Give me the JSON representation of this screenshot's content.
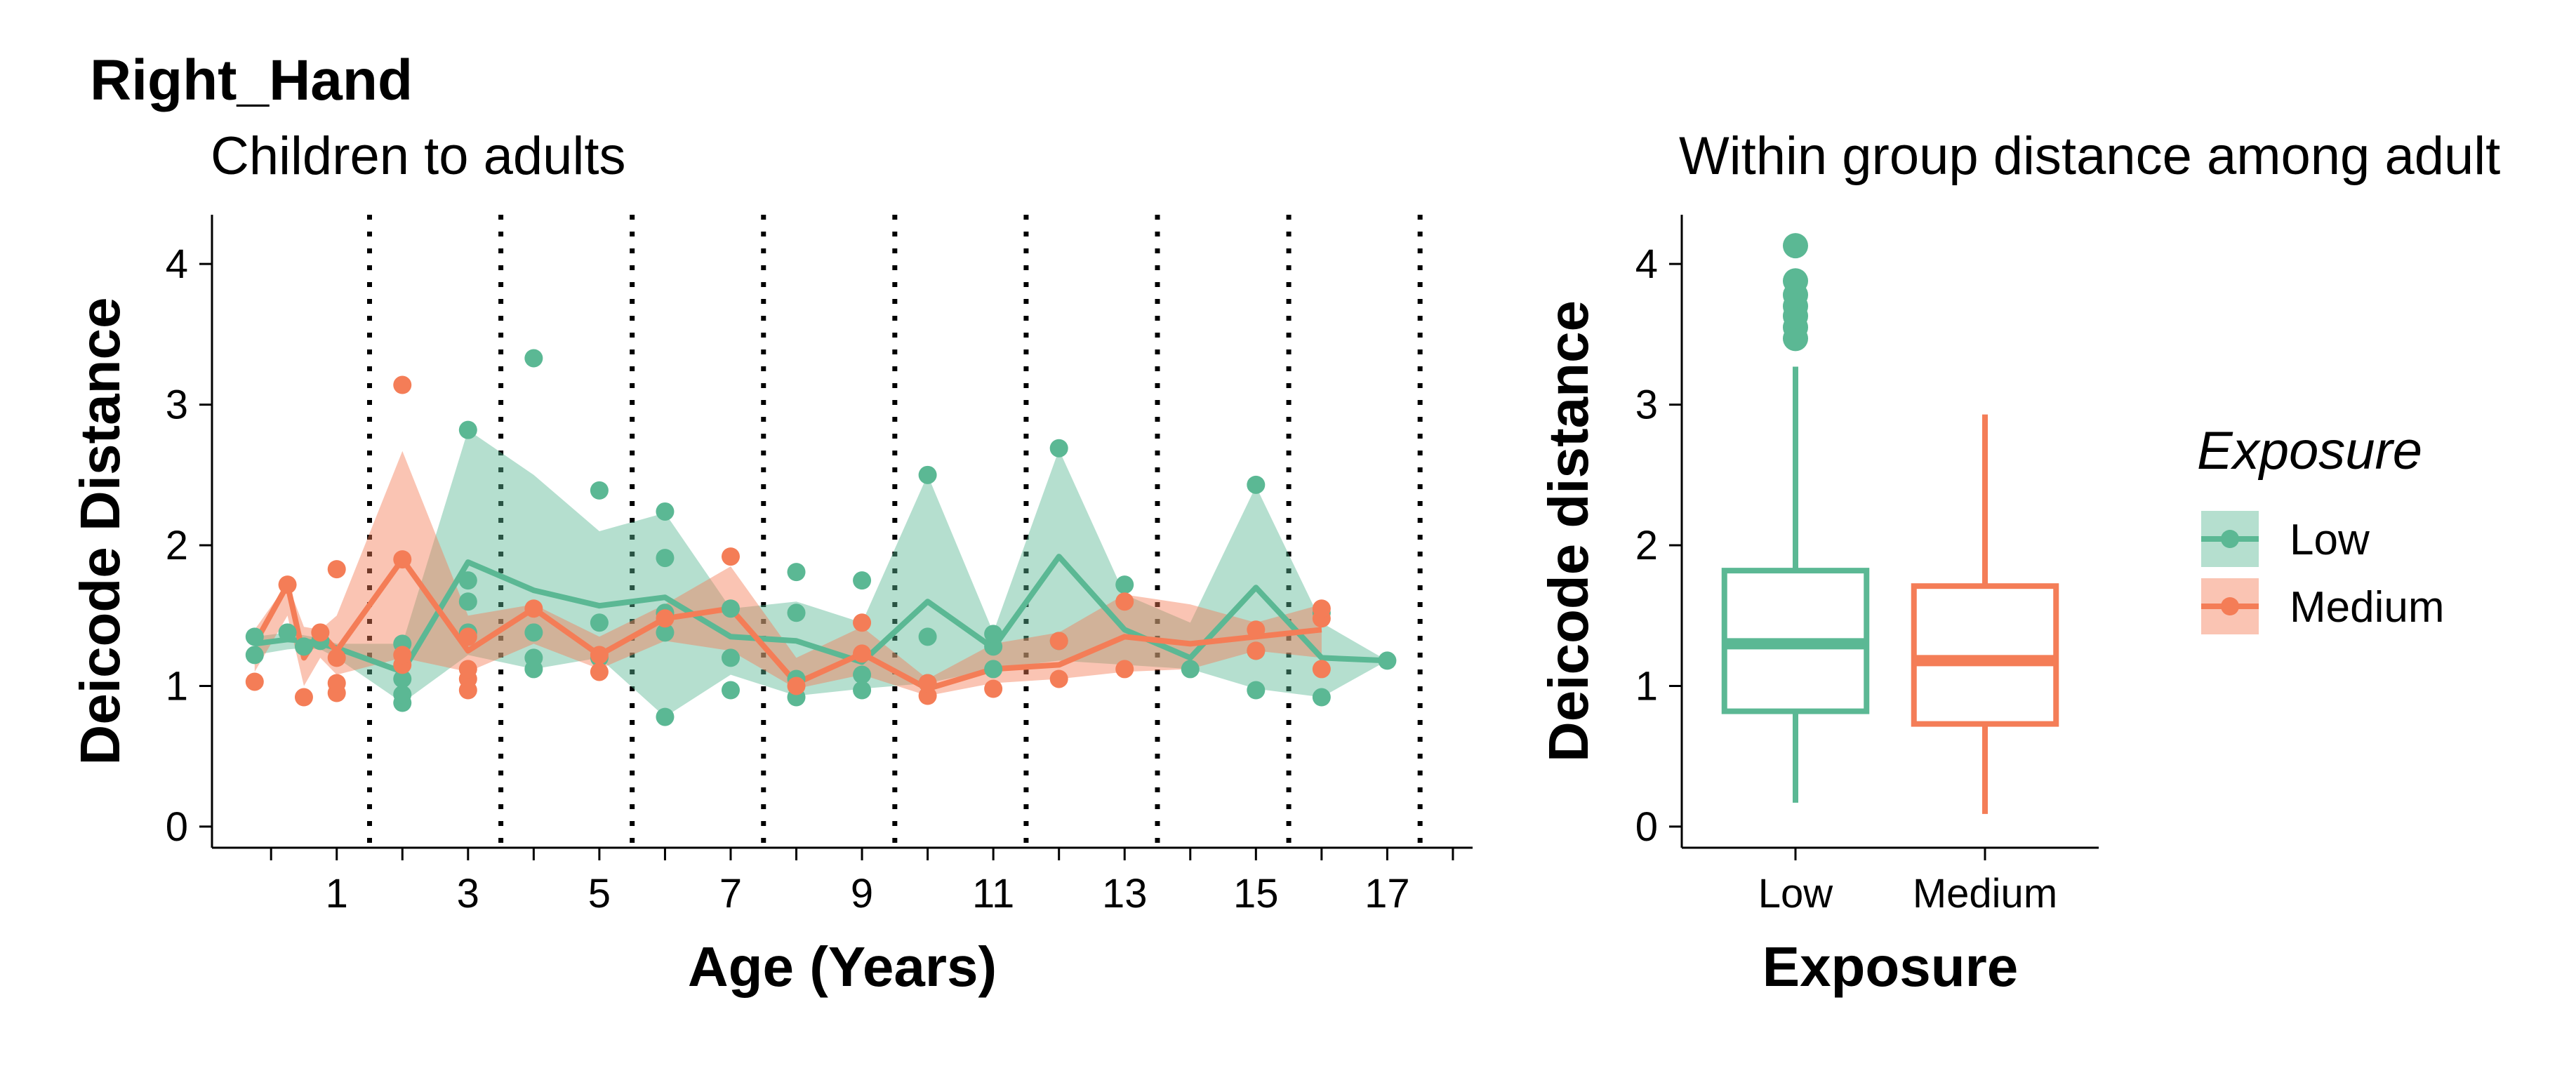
{
  "figure": {
    "title": "Right_Hand",
    "legend": {
      "title": "Exposure",
      "items": [
        {
          "label": "Low",
          "color": "#5BB894"
        },
        {
          "label": "Medium",
          "color": "#F47D57"
        }
      ]
    }
  },
  "chart_data": [
    {
      "type": "line",
      "title": "Children to adults",
      "xlabel": "Age (Years)",
      "ylabel": "Deicode Distance",
      "xlim": [
        -0.9,
        18.3
      ],
      "ylim": [
        -0.15,
        4.35
      ],
      "x_ticks": [
        1,
        3,
        5,
        7,
        9,
        11,
        13,
        15,
        17
      ],
      "x_minor_ticks": [
        0,
        2,
        4,
        6,
        8,
        10,
        12,
        14,
        16,
        18
      ],
      "y_ticks": [
        0,
        1,
        2,
        3,
        4
      ],
      "vlines": [
        1.5,
        3.5,
        5.5,
        7.5,
        9.5,
        11.5,
        13.5,
        15.5,
        17.5
      ],
      "grid": false,
      "legend_position": "right",
      "series": [
        {
          "name": "Low",
          "color": "#5BB894",
          "line": {
            "x": [
              -0.25,
              0.25,
              0.5,
              0.75,
              1,
              2,
              3,
              4,
              5,
              6,
              7,
              8,
              9,
              10,
              11,
              12,
              13,
              14,
              15,
              16,
              17
            ],
            "y": [
              1.3,
              1.33,
              1.32,
              1.3,
              1.27,
              1.1,
              1.88,
              1.68,
              1.57,
              1.63,
              1.35,
              1.32,
              1.17,
              1.6,
              1.27,
              1.92,
              1.4,
              1.2,
              1.7,
              1.2,
              1.18
            ]
          },
          "band_upper": [
            1.35,
            1.38,
            1.36,
            1.34,
            1.3,
            1.3,
            2.82,
            2.5,
            2.1,
            2.23,
            1.55,
            1.6,
            1.45,
            2.5,
            1.38,
            2.68,
            1.65,
            1.45,
            2.42,
            1.45,
            1.18
          ],
          "band_lower": [
            1.22,
            1.26,
            1.27,
            1.26,
            1.2,
            0.88,
            1.22,
            1.12,
            1.2,
            0.78,
            1.08,
            0.93,
            0.98,
            1.02,
            1.12,
            1.18,
            1.15,
            1.12,
            0.98,
            0.92,
            1.18
          ],
          "points": [
            [
              -0.25,
              1.22
            ],
            [
              -0.25,
              1.35
            ],
            [
              0.25,
              1.38
            ],
            [
              0.5,
              1.28
            ],
            [
              0.75,
              1.32
            ],
            [
              2,
              0.88
            ],
            [
              2,
              0.94
            ],
            [
              2,
              1.05
            ],
            [
              2,
              1.3
            ],
            [
              3,
              1.38
            ],
            [
              3,
              1.6
            ],
            [
              3,
              1.75
            ],
            [
              3,
              2.82
            ],
            [
              4,
              1.12
            ],
            [
              4,
              1.2
            ],
            [
              4,
              1.38
            ],
            [
              4,
              3.33
            ],
            [
              5,
              1.2
            ],
            [
              5,
              1.45
            ],
            [
              5,
              2.39
            ],
            [
              6,
              0.78
            ],
            [
              6,
              1.38
            ],
            [
              6,
              1.52
            ],
            [
              6,
              1.91
            ],
            [
              6,
              2.24
            ],
            [
              7,
              0.97
            ],
            [
              7,
              1.2
            ],
            [
              7,
              1.55
            ],
            [
              8,
              0.92
            ],
            [
              8,
              1.05
            ],
            [
              8,
              1.52
            ],
            [
              8,
              1.81
            ],
            [
              9,
              0.97
            ],
            [
              9,
              1.08
            ],
            [
              9,
              1.75
            ],
            [
              10,
              1.02
            ],
            [
              10,
              1.35
            ],
            [
              10,
              2.5
            ],
            [
              11,
              1.12
            ],
            [
              11,
              1.28
            ],
            [
              11,
              1.37
            ],
            [
              12,
              1.32
            ],
            [
              12,
              2.69
            ],
            [
              13,
              1.72
            ],
            [
              14,
              1.12
            ],
            [
              15,
              0.97
            ],
            [
              15,
              1.25
            ],
            [
              15,
              2.43
            ],
            [
              16,
              0.92
            ],
            [
              16,
              1.52
            ],
            [
              17,
              1.18
            ]
          ]
        },
        {
          "name": "Medium",
          "color": "#F47D57",
          "line": {
            "x": [
              -0.25,
              0.25,
              0.5,
              0.75,
              1,
              2,
              3,
              4,
              5,
              6,
              7,
              8,
              9,
              10,
              11,
              12,
              13,
              14,
              15,
              16
            ],
            "y": [
              1.3,
              1.72,
              1.2,
              1.38,
              1.25,
              1.9,
              1.25,
              1.55,
              1.22,
              1.48,
              1.55,
              1.02,
              1.23,
              0.98,
              1.12,
              1.15,
              1.35,
              1.3,
              1.35,
              1.4
            ]
          },
          "band_upper": [
            1.4,
            1.73,
            1.42,
            1.4,
            1.5,
            2.67,
            1.5,
            1.58,
            1.35,
            1.58,
            1.85,
            1.2,
            1.42,
            1.05,
            1.3,
            1.38,
            1.65,
            1.58,
            1.45,
            1.58
          ],
          "band_lower": [
            1.1,
            1.5,
            1.0,
            1.2,
            1.08,
            1.2,
            1.1,
            1.3,
            1.12,
            1.32,
            1.25,
            0.98,
            1.08,
            0.93,
            1.02,
            1.05,
            1.1,
            1.12,
            1.25,
            1.2
          ],
          "points": [
            [
              -0.25,
              1.03
            ],
            [
              0.25,
              1.72
            ],
            [
              0.5,
              0.92
            ],
            [
              0.75,
              1.38
            ],
            [
              1,
              0.95
            ],
            [
              1,
              1.02
            ],
            [
              1,
              1.2
            ],
            [
              1,
              1.83
            ],
            [
              2,
              1.15
            ],
            [
              2,
              1.22
            ],
            [
              2,
              1.9
            ],
            [
              2,
              3.14
            ],
            [
              3,
              0.97
            ],
            [
              3,
              1.05
            ],
            [
              3,
              1.12
            ],
            [
              3,
              1.35
            ],
            [
              4,
              1.55
            ],
            [
              5,
              1.1
            ],
            [
              5,
              1.22
            ],
            [
              6,
              1.48
            ],
            [
              7,
              1.92
            ],
            [
              8,
              1.0
            ],
            [
              9,
              1.23
            ],
            [
              9,
              1.45
            ],
            [
              10,
              0.93
            ],
            [
              10,
              1.02
            ],
            [
              11,
              0.98
            ],
            [
              12,
              1.05
            ],
            [
              12,
              1.32
            ],
            [
              13,
              1.12
            ],
            [
              13,
              1.6
            ],
            [
              15,
              1.25
            ],
            [
              15,
              1.4
            ],
            [
              16,
              1.12
            ],
            [
              16,
              1.48
            ],
            [
              16,
              1.55
            ]
          ]
        }
      ]
    },
    {
      "type": "box",
      "title": "Within group distance among adult",
      "xlabel": "Exposure",
      "ylabel": "Deicode distance",
      "categories": [
        "Low",
        "Medium"
      ],
      "ylim": [
        -0.15,
        4.35
      ],
      "y_ticks": [
        0,
        1,
        2,
        3,
        4
      ],
      "grid": false,
      "boxes": [
        {
          "name": "Low",
          "color": "#5BB894",
          "whisker_low": 0.17,
          "q1": 0.82,
          "median": 1.3,
          "q3": 1.82,
          "whisker_high": 3.27,
          "outliers": [
            3.47,
            3.55,
            3.63,
            3.7,
            3.78,
            3.88,
            4.13
          ]
        },
        {
          "name": "Medium",
          "color": "#F47D57",
          "whisker_low": 0.09,
          "q1": 0.73,
          "median": 1.18,
          "q3": 1.71,
          "whisker_high": 2.93,
          "outliers": []
        }
      ]
    }
  ]
}
